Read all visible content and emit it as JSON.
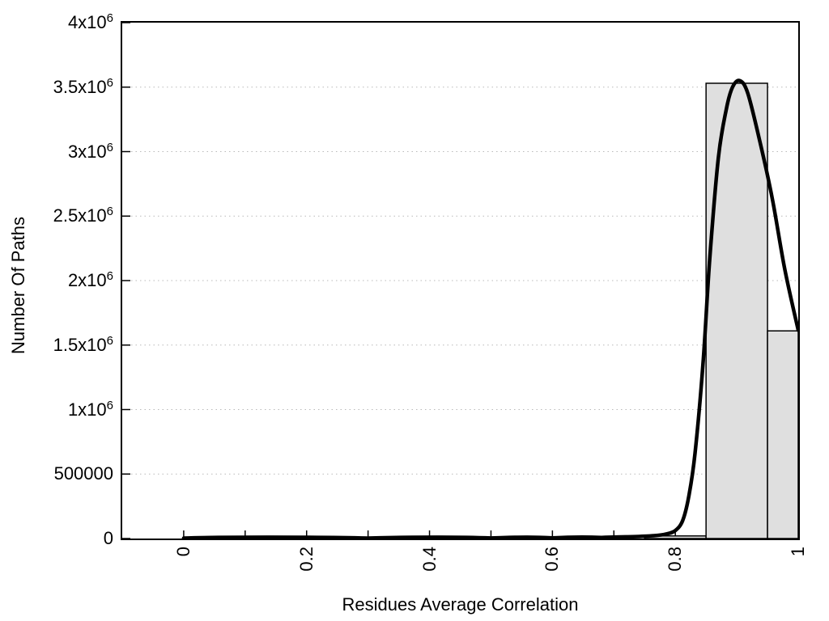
{
  "chart_data": {
    "type": "bar",
    "subtype": "histogram_with_fitted_curve",
    "title": "",
    "xlabel": "Residues Average Correlation",
    "ylabel": "Number Of Paths",
    "xlim": [
      -0.1,
      1.0
    ],
    "ylim": [
      0,
      4000000
    ],
    "grid": "horizontal-dotted",
    "legend": "none",
    "x_ticks": [
      {
        "v": 0.0,
        "label": "0"
      },
      {
        "v": 0.1,
        "label": ""
      },
      {
        "v": 0.2,
        "label": "0.2"
      },
      {
        "v": 0.3,
        "label": ""
      },
      {
        "v": 0.4,
        "label": "0.4"
      },
      {
        "v": 0.5,
        "label": ""
      },
      {
        "v": 0.6,
        "label": "0.6"
      },
      {
        "v": 0.7,
        "label": ""
      },
      {
        "v": 0.8,
        "label": "0.8"
      },
      {
        "v": 0.9,
        "label": ""
      },
      {
        "v": 1.0,
        "label": "1"
      }
    ],
    "y_ticks": [
      {
        "v": 0,
        "base": "0",
        "exp": ""
      },
      {
        "v": 500000,
        "base": "500000",
        "exp": ""
      },
      {
        "v": 1000000,
        "base": "1x10",
        "exp": "6"
      },
      {
        "v": 1500000,
        "base": "1.5x10",
        "exp": "6"
      },
      {
        "v": 2000000,
        "base": "2x10",
        "exp": "6"
      },
      {
        "v": 2500000,
        "base": "2.5x10",
        "exp": "6"
      },
      {
        "v": 3000000,
        "base": "3x10",
        "exp": "6"
      },
      {
        "v": 3500000,
        "base": "3.5x10",
        "exp": "6"
      },
      {
        "v": 4000000,
        "base": "4x10",
        "exp": "6"
      }
    ],
    "bars": [
      {
        "x0": 0.75,
        "x1": 0.85,
        "y": 20000
      },
      {
        "x0": 0.85,
        "x1": 0.95,
        "y": 3530000
      },
      {
        "x0": 0.95,
        "x1": 1.0,
        "y": 1610000
      }
    ],
    "curve": [
      [
        0.0,
        3000
      ],
      [
        0.3,
        3000
      ],
      [
        0.5,
        4000
      ],
      [
        0.6,
        5000
      ],
      [
        0.68,
        8000
      ],
      [
        0.73,
        14000
      ],
      [
        0.765,
        22000
      ],
      [
        0.785,
        35000
      ],
      [
        0.8,
        62000
      ],
      [
        0.812,
        140000
      ],
      [
        0.822,
        330000
      ],
      [
        0.832,
        660000
      ],
      [
        0.845,
        1350000
      ],
      [
        0.856,
        2170000
      ],
      [
        0.87,
        2950000
      ],
      [
        0.883,
        3330000
      ],
      [
        0.893,
        3500000
      ],
      [
        0.905,
        3550000
      ],
      [
        0.918,
        3450000
      ],
      [
        0.938,
        3070000
      ],
      [
        0.958,
        2630000
      ],
      [
        0.978,
        2090000
      ],
      [
        1.0,
        1615000
      ]
    ],
    "colors": {
      "background": "#ffffff",
      "axis": "#000000",
      "grid": "#b9b9b9",
      "bar_fill": "#dfdfdf",
      "bar_stroke": "#000000",
      "curve": "#000000"
    }
  }
}
